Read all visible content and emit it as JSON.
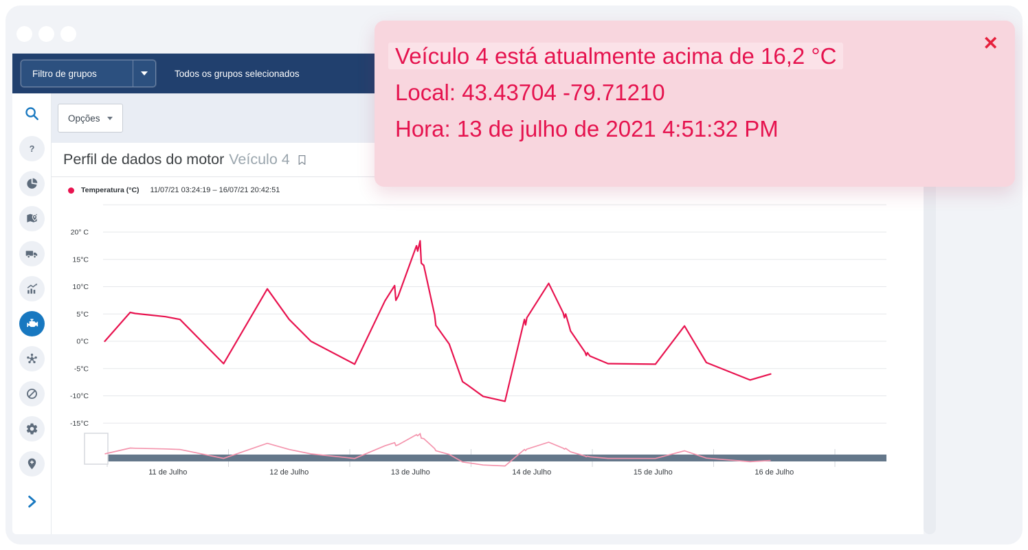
{
  "header": {
    "filter_label": "Filtro de grupos",
    "selection_text": "Todos os grupos selecionados"
  },
  "toolbar": {
    "options_label": "Opções"
  },
  "page": {
    "title": "Perfil de dados do motor",
    "vehicle": "Veículo 4"
  },
  "legend": {
    "series_label": "Temperatura (°C)",
    "date_range": "11/07/21 03:24:19 – 16/07/21 20:42:51"
  },
  "notification": {
    "line1": "Veículo 4 está atualmente acima de 16,2 °C",
    "line2": "Local: 43.43704  -79.71210",
    "line3": "Hora: 13 de julho de 2021 4:51:32 PM",
    "close_label": "✕"
  },
  "sidebar": {
    "items": [
      {
        "name": "search",
        "icon": "search-icon",
        "plain": true
      },
      {
        "name": "help",
        "icon": "help-icon"
      },
      {
        "name": "reports",
        "icon": "pie-chart-icon"
      },
      {
        "name": "map",
        "icon": "map-icon"
      },
      {
        "name": "vehicles",
        "icon": "truck-icon"
      },
      {
        "name": "productivity",
        "icon": "trend-chart-icon"
      },
      {
        "name": "engine-data",
        "icon": "engine-icon",
        "active": true
      },
      {
        "name": "rules",
        "icon": "gear-nodes-icon"
      },
      {
        "name": "exceptions",
        "icon": "block-icon"
      },
      {
        "name": "settings",
        "icon": "gear-icon"
      },
      {
        "name": "zones",
        "icon": "pin-plus-icon"
      },
      {
        "name": "expand",
        "icon": "chevron-right-icon",
        "plain": true,
        "bottom": true
      }
    ]
  },
  "colors": {
    "topbar_navy": "#21406e",
    "accent_blue": "#1878c0",
    "series_pink": "#e8134f",
    "navigator_bar": "#64778a",
    "navigator_line": "#f493ac",
    "notification_bg": "#f8d6de",
    "notification_text": "#e5134e"
  },
  "chart_data": {
    "type": "line",
    "title": "Perfil de dados do motor — Veículo 4",
    "ylabel": "Temperatura (°C)",
    "grid": true,
    "legend_position": "top-left",
    "ylim": [
      -20,
      25
    ],
    "y_ticks": [
      {
        "value": 20,
        "label": "20° C"
      },
      {
        "value": 15,
        "label": "15°C"
      },
      {
        "value": 10,
        "label": "10°C"
      },
      {
        "value": 5,
        "label": "5°C"
      },
      {
        "value": 0,
        "label": "0°C"
      },
      {
        "value": -5,
        "label": "-5°C"
      },
      {
        "value": -10,
        "label": "-10°C"
      },
      {
        "value": -15,
        "label": "-15°C"
      }
    ],
    "x_range_days": [
      11,
      17
    ],
    "x_ticks": [
      "11 de Julho",
      "12 de Julho",
      "13 de Julho",
      "14 de Julho",
      "15 de Julho",
      "16 de Julho"
    ],
    "x_unit": "day of July 2021 (fractional part = time of day)",
    "series": [
      {
        "name": "Temperatura (°C)",
        "color": "#e8134f",
        "points": [
          [
            10.98,
            0.0
          ],
          [
            11.19,
            5.3
          ],
          [
            11.23,
            5.1
          ],
          [
            11.48,
            4.5
          ],
          [
            11.6,
            4.0
          ],
          [
            11.96,
            -4.1
          ],
          [
            12.32,
            9.6
          ],
          [
            12.5,
            4.0
          ],
          [
            12.68,
            0.0
          ],
          [
            13.04,
            -4.2
          ],
          [
            13.29,
            7.4
          ],
          [
            13.37,
            10.2
          ],
          [
            13.38,
            7.5
          ],
          [
            13.4,
            8.3
          ],
          [
            13.55,
            17.5
          ],
          [
            13.56,
            16.5
          ],
          [
            13.58,
            18.4
          ],
          [
            13.59,
            14.3
          ],
          [
            13.61,
            13.9
          ],
          [
            13.7,
            4.8
          ],
          [
            13.71,
            2.9
          ],
          [
            13.82,
            -0.5
          ],
          [
            13.93,
            -7.4
          ],
          [
            13.97,
            -8.0
          ],
          [
            14.1,
            -10.1
          ],
          [
            14.28,
            -11.0
          ],
          [
            14.44,
            4.0
          ],
          [
            14.45,
            3.0
          ],
          [
            14.46,
            4.3
          ],
          [
            14.64,
            10.6
          ],
          [
            14.76,
            5.2
          ],
          [
            14.77,
            4.3
          ],
          [
            14.78,
            5.0
          ],
          [
            14.81,
            2.7
          ],
          [
            14.82,
            1.9
          ],
          [
            14.94,
            -2.0
          ],
          [
            14.95,
            -2.6
          ],
          [
            14.96,
            -2.1
          ],
          [
            14.98,
            -2.7
          ],
          [
            15.13,
            -4.1
          ],
          [
            15.52,
            -4.2
          ],
          [
            15.76,
            2.8
          ],
          [
            15.94,
            -3.9
          ],
          [
            16.3,
            -7.1
          ],
          [
            16.47,
            -6.0
          ]
        ]
      }
    ],
    "navigator": {
      "bar_color": "#64778a",
      "line_color": "#f493ac"
    }
  }
}
